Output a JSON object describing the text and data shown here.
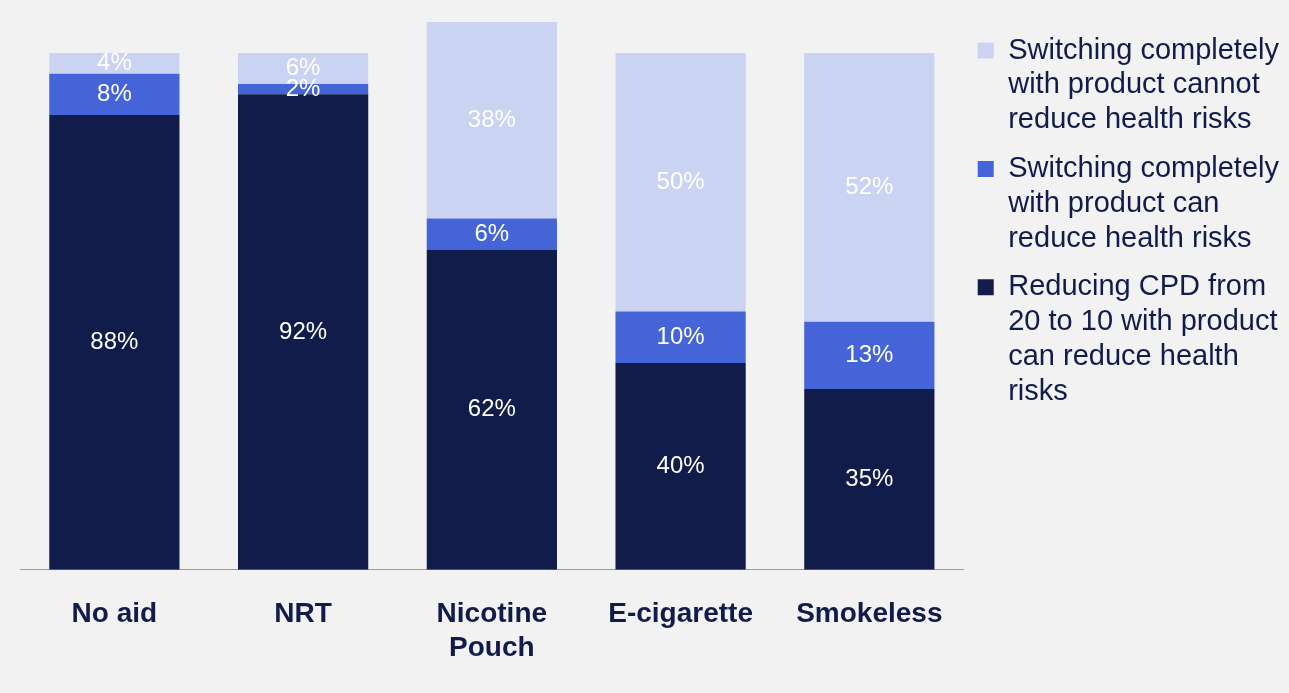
{
  "chart_data": {
    "type": "bar",
    "stacked": true,
    "categories": [
      "No aid",
      "NRT",
      "Nicotine Pouch",
      "E-cigarette",
      "Smokeless"
    ],
    "series": [
      {
        "name": "Reducing CPD from 20 to 10 with product can reduce health risks",
        "color": "#111c4a",
        "values": [
          88,
          92,
          62,
          40,
          35
        ],
        "value_labels": [
          "88%",
          "92%",
          "62%",
          "40%",
          "35%"
        ]
      },
      {
        "name": "Switching completely with product can reduce health risks",
        "color": "#4464d8",
        "values": [
          8,
          2,
          6,
          10,
          13
        ],
        "value_labels": [
          "8%",
          "2%",
          "6%",
          "10%",
          "13%"
        ]
      },
      {
        "name": "Switching completely with product cannot reduce health risks",
        "color": "#cbd3f2",
        "values": [
          4,
          6,
          38,
          50,
          52
        ],
        "value_labels": [
          "4%",
          "6%",
          "38%",
          "50%",
          "52%"
        ]
      }
    ],
    "legend": "right"
  }
}
